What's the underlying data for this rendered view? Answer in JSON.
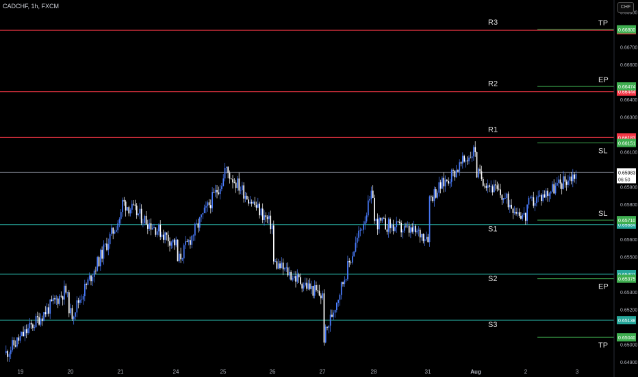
{
  "header": {
    "symbol_label": "CADCHF, 1h, FXCM",
    "currency_button": "CHF"
  },
  "colors": {
    "bull": "#4a7dff",
    "bear": "#ffffff",
    "resistance": "#f23645",
    "support": "#26a69a",
    "target_line": "#3fae50",
    "last_price_line": "#787b86",
    "axis_text": "#b2b5be"
  },
  "chart_data": {
    "type": "candlestick",
    "y_ticks": [
      "0.66900",
      "0.66700",
      "0.66600",
      "0.66400",
      "0.66300",
      "0.66100",
      "0.65900",
      "0.65800",
      "0.65600",
      "0.65500",
      "0.65300",
      "0.65200",
      "0.65000",
      "0.64900"
    ],
    "x_ticks": [
      "19",
      "20",
      "21",
      "24",
      "25",
      "26",
      "27",
      "28",
      "31",
      "Aug",
      "2",
      "3"
    ],
    "ylim": [
      0.6488,
      0.6696
    ],
    "last_price": {
      "price": "0.65983",
      "countdown": "06:50",
      "value": 0.65983
    },
    "levels": [
      {
        "label": "R3",
        "price": "0.66795",
        "value": 0.66795,
        "kind": "resistance"
      },
      {
        "label": "R2",
        "price": "0.66444",
        "value": 0.66444,
        "kind": "resistance"
      },
      {
        "label": "R1",
        "price": "0.66183",
        "value": 0.66183,
        "kind": "resistance"
      },
      {
        "label": "S1",
        "price": "0.65684",
        "value": 0.65684,
        "kind": "support"
      },
      {
        "label": "S2",
        "price": "0.65401",
        "value": 0.65401,
        "kind": "support"
      },
      {
        "label": "S3",
        "price": "0.65138",
        "value": 0.65138,
        "kind": "support"
      }
    ],
    "targets": [
      {
        "label": "TP",
        "price": "0.66800",
        "value": 0.668,
        "x0": "Aug",
        "x1": "3"
      },
      {
        "label": "EP",
        "price": "0.66474",
        "value": 0.66474,
        "x0": "Aug",
        "x1": "3"
      },
      {
        "label": "SL",
        "price": "0.66151",
        "value": 0.66151,
        "x0": "Aug",
        "x1": "3"
      },
      {
        "label": "SL",
        "price": "0.65710",
        "value": 0.6571,
        "x0": "Aug",
        "x1": "3"
      },
      {
        "label": "EP",
        "price": "0.65375",
        "value": 0.65375,
        "x0": "Aug",
        "x1": "3"
      },
      {
        "label": "TP",
        "price": "0.65040",
        "value": 0.6504,
        "x0": "Aug",
        "x1": "3"
      }
    ],
    "close_path": [
      {
        "x": "19",
        "y": 0.6495
      },
      {
        "x": "20",
        "y": 0.6531
      },
      {
        "x": "20",
        "y": 0.6516
      },
      {
        "x": "21",
        "y": 0.6574
      },
      {
        "x": "21",
        "y": 0.6582
      },
      {
        "x": "24",
        "y": 0.6557
      },
      {
        "x": "24",
        "y": 0.6546
      },
      {
        "x": "25",
        "y": 0.6595
      },
      {
        "x": "25",
        "y": 0.6601
      },
      {
        "x": "26",
        "y": 0.6567
      },
      {
        "x": "26",
        "y": 0.6547
      },
      {
        "x": "27",
        "y": 0.6527
      },
      {
        "x": "27",
        "y": 0.6502
      },
      {
        "x": "28",
        "y": 0.6589
      },
      {
        "x": "28",
        "y": 0.657
      },
      {
        "x": "31",
        "y": 0.6562
      },
      {
        "x": "31",
        "y": 0.6583
      },
      {
        "x": "Aug",
        "y": 0.6612
      },
      {
        "x": "Aug",
        "y": 0.6598
      },
      {
        "x": "2",
        "y": 0.6572
      },
      {
        "x": "2",
        "y": 0.6579
      },
      {
        "x": "3",
        "y": 0.65983
      }
    ]
  }
}
